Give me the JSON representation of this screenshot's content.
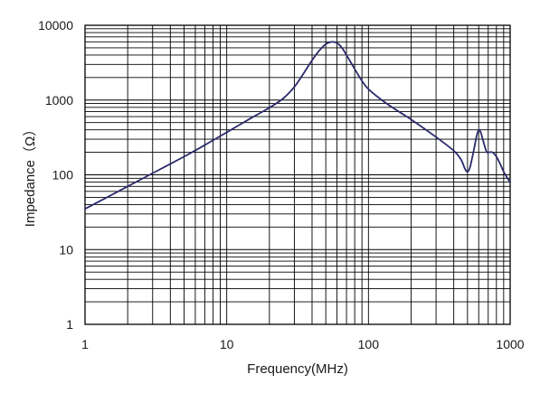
{
  "chart_data": {
    "type": "line",
    "title": "",
    "xlabel": "Frequency(MHz)",
    "ylabel": "Impedance（Ω）",
    "x_scale": "log",
    "y_scale": "log",
    "xlim": [
      1,
      1000
    ],
    "ylim": [
      1,
      10000
    ],
    "x_ticks": [
      1,
      10,
      100,
      1000
    ],
    "x_tick_labels": [
      "1",
      "10",
      "100",
      "1000"
    ],
    "y_ticks": [
      1,
      10,
      100,
      1000,
      10000
    ],
    "y_tick_labels": [
      "1",
      "10",
      "100",
      "1000",
      "10000"
    ],
    "grid": true,
    "grid_minor": true,
    "line_color": "#2b2a6b",
    "series": [
      {
        "x": [
          1,
          2,
          3,
          5,
          7,
          10,
          15,
          20,
          25,
          30,
          35,
          40,
          45,
          50,
          55,
          60,
          65,
          70,
          80,
          90,
          100,
          120,
          150,
          200,
          300,
          400,
          450,
          480,
          500,
          520,
          550,
          580,
          600,
          620,
          650,
          680,
          700,
          750,
          800,
          850,
          900,
          950,
          1000
        ],
        "y": [
          35,
          70,
          105,
          175,
          250,
          370,
          580,
          790,
          1050,
          1500,
          2300,
          3400,
          4600,
          5600,
          6000,
          5800,
          5000,
          4000,
          2600,
          1800,
          1400,
          1050,
          780,
          550,
          320,
          210,
          160,
          120,
          110,
          125,
          200,
          330,
          400,
          370,
          270,
          205,
          200,
          200,
          175,
          140,
          110,
          92,
          80
        ]
      }
    ]
  }
}
